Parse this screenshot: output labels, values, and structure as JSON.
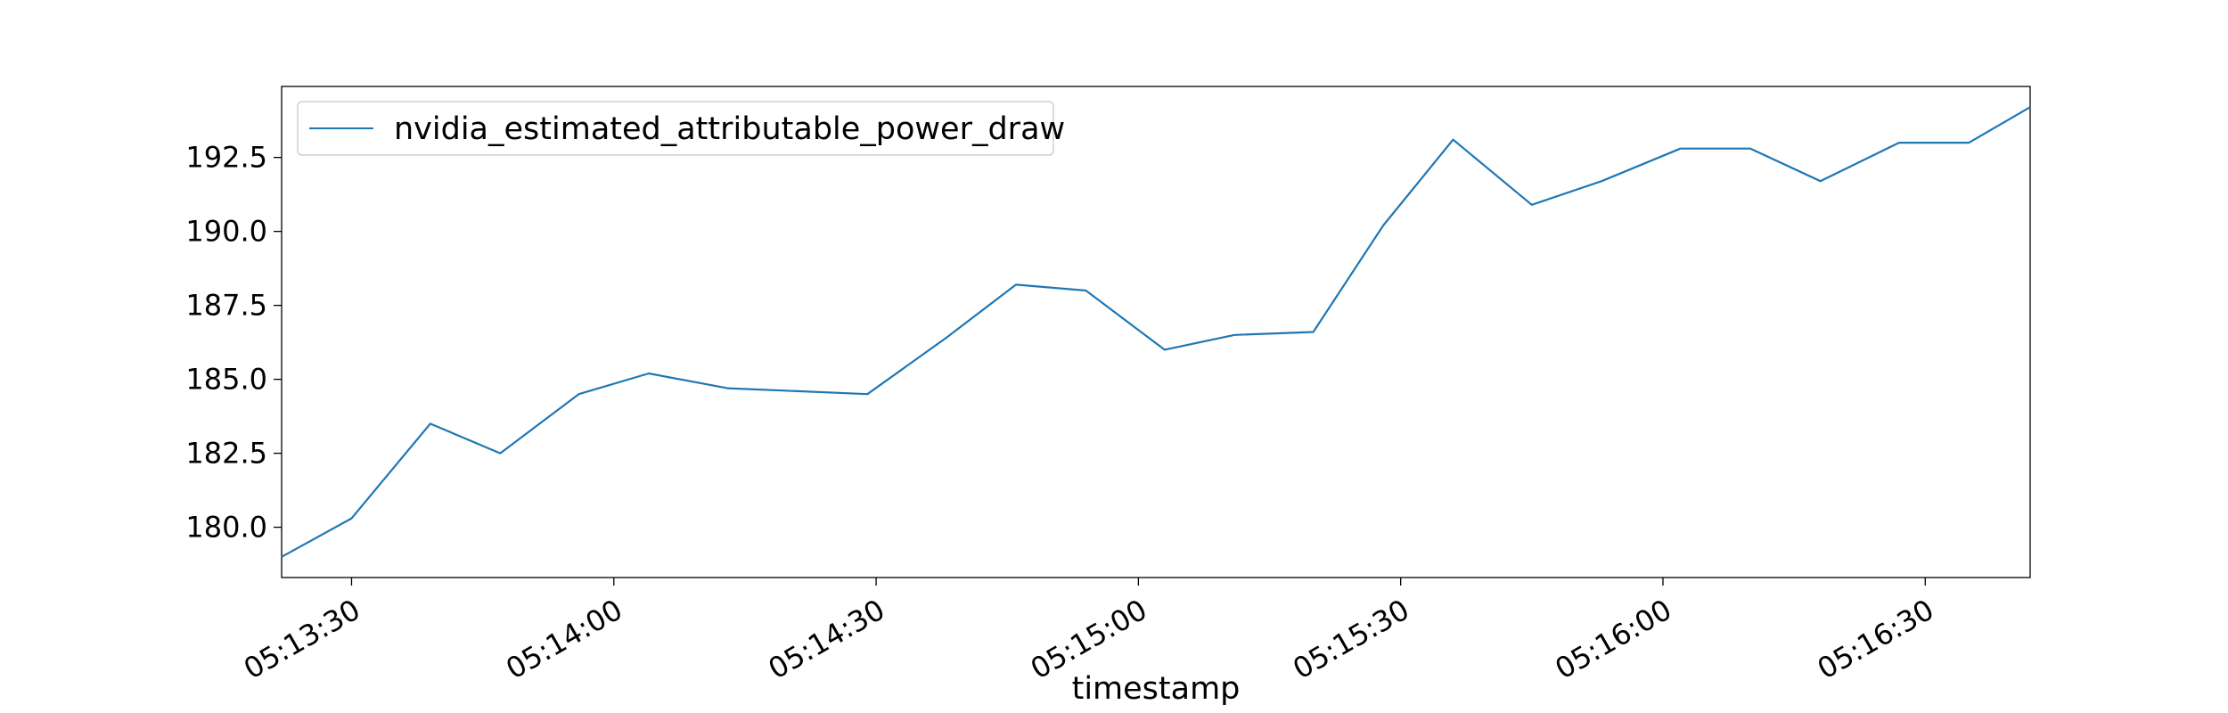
{
  "chart_data": {
    "type": "line",
    "xlabel": "timestamp",
    "ylabel": "",
    "xlim": [
      "05:13:22",
      "05:16:42"
    ],
    "ylim": [
      178.3,
      194.9
    ],
    "xticks": [
      "05:13:30",
      "05:14:00",
      "05:14:30",
      "05:15:00",
      "05:15:30",
      "05:16:00",
      "05:16:30"
    ],
    "yticks": [
      "180.0",
      "182.5",
      "185.0",
      "187.5",
      "190.0",
      "192.5"
    ],
    "legend_position": "top-left",
    "grid": false,
    "series": [
      {
        "name": "nvidia_estimated_attributable_power_draw",
        "color": "#1f77b4",
        "x": [
          "05:13:22",
          "05:13:30",
          "05:13:39",
          "05:13:47",
          "05:13:56",
          "05:14:04",
          "05:14:13",
          "05:14:21",
          "05:14:29",
          "05:14:38",
          "05:14:46",
          "05:14:54",
          "05:15:03",
          "05:15:11",
          "05:15:20",
          "05:15:28",
          "05:15:36",
          "05:15:45",
          "05:15:53",
          "05:16:02",
          "05:16:10",
          "05:16:18",
          "05:16:27",
          "05:16:35",
          "05:16:42"
        ],
        "y": [
          179.0,
          180.3,
          183.5,
          182.5,
          184.5,
          185.2,
          184.7,
          184.6,
          184.5,
          186.4,
          188.2,
          188.0,
          186.0,
          186.5,
          186.6,
          190.2,
          193.1,
          190.9,
          191.7,
          192.8,
          192.8,
          191.7,
          193.0,
          193.0,
          194.2
        ]
      }
    ]
  }
}
